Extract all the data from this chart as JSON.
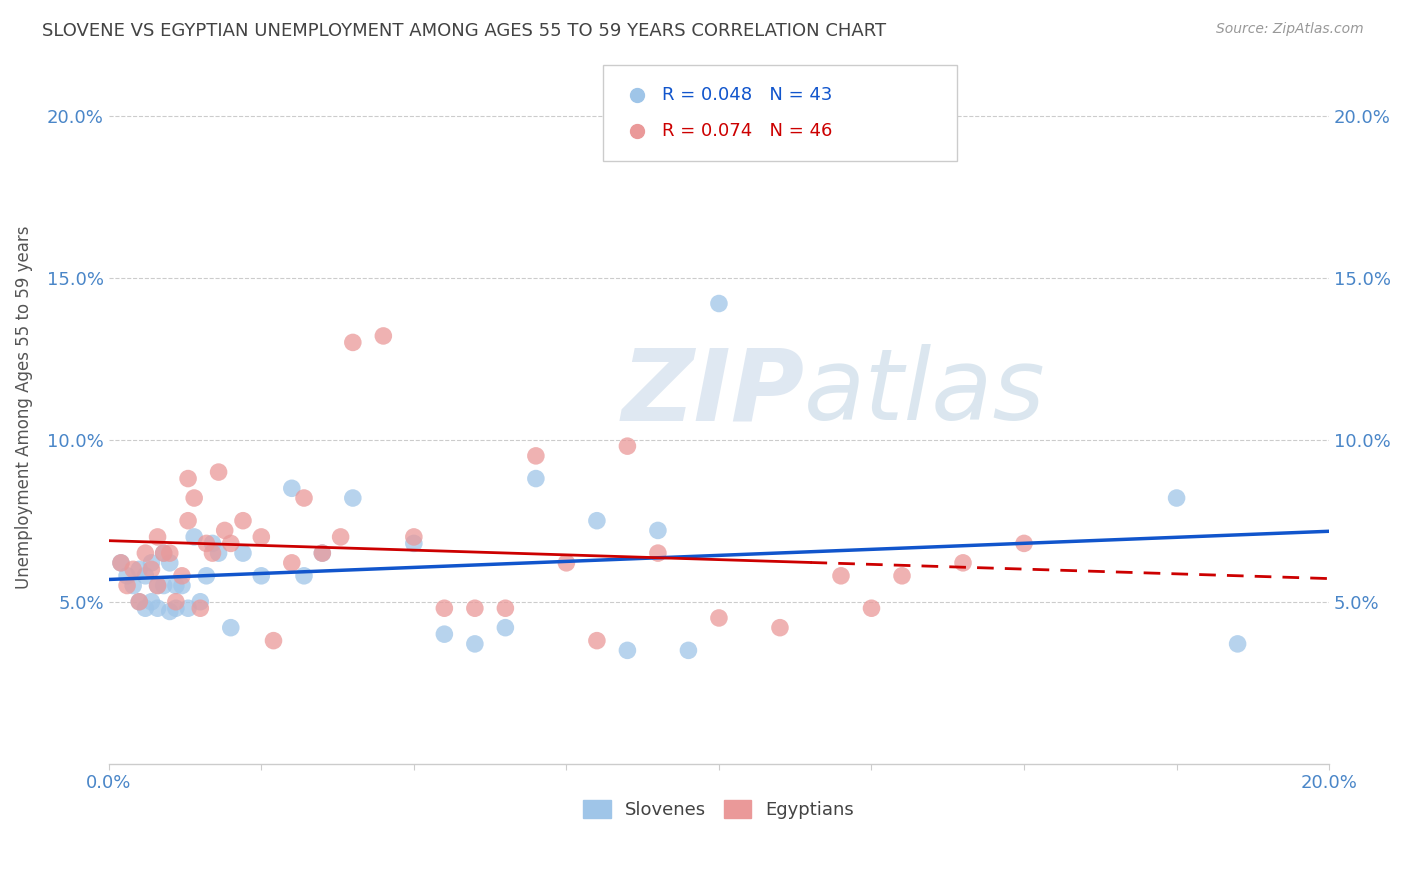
{
  "title": "SLOVENE VS EGYPTIAN UNEMPLOYMENT AMONG AGES 55 TO 59 YEARS CORRELATION CHART",
  "source": "Source: ZipAtlas.com",
  "ylabel": "Unemployment Among Ages 55 to 59 years",
  "xlim": [
    0.0,
    0.2
  ],
  "ylim": [
    0.0,
    0.22
  ],
  "xticks": [
    0.0,
    0.025,
    0.05,
    0.075,
    0.1,
    0.125,
    0.15,
    0.175,
    0.2
  ],
  "xtick_labels_show": [
    "0.0%",
    "",
    "",
    "",
    "",
    "",
    "",
    "",
    "20.0%"
  ],
  "yticks": [
    0.05,
    0.1,
    0.15,
    0.2
  ],
  "ytick_labels": [
    "5.0%",
    "10.0%",
    "15.0%",
    "20.0%"
  ],
  "slovene_color": "#9fc5e8",
  "egyptian_color": "#ea9999",
  "slovene_line_color": "#1155cc",
  "egyptian_line_color": "#cc0000",
  "slovene_R": 0.048,
  "slovene_N": 43,
  "egyptian_R": 0.074,
  "egyptian_N": 46,
  "slovene_x": [
    0.002,
    0.003,
    0.004,
    0.005,
    0.005,
    0.006,
    0.006,
    0.007,
    0.007,
    0.008,
    0.008,
    0.009,
    0.009,
    0.01,
    0.01,
    0.011,
    0.011,
    0.012,
    0.013,
    0.014,
    0.015,
    0.016,
    0.017,
    0.018,
    0.02,
    0.022,
    0.025,
    0.03,
    0.032,
    0.035,
    0.04,
    0.05,
    0.055,
    0.06,
    0.065,
    0.07,
    0.08,
    0.085,
    0.09,
    0.095,
    0.1,
    0.175,
    0.185
  ],
  "slovene_y": [
    0.062,
    0.058,
    0.055,
    0.06,
    0.05,
    0.058,
    0.048,
    0.062,
    0.05,
    0.055,
    0.048,
    0.065,
    0.055,
    0.062,
    0.047,
    0.055,
    0.048,
    0.055,
    0.048,
    0.07,
    0.05,
    0.058,
    0.068,
    0.065,
    0.042,
    0.065,
    0.058,
    0.085,
    0.058,
    0.065,
    0.082,
    0.068,
    0.04,
    0.037,
    0.042,
    0.088,
    0.075,
    0.035,
    0.072,
    0.035,
    0.142,
    0.082,
    0.037
  ],
  "egyptian_x": [
    0.002,
    0.003,
    0.004,
    0.005,
    0.006,
    0.007,
    0.008,
    0.008,
    0.009,
    0.01,
    0.011,
    0.012,
    0.013,
    0.013,
    0.014,
    0.015,
    0.016,
    0.017,
    0.018,
    0.019,
    0.02,
    0.022,
    0.025,
    0.027,
    0.03,
    0.032,
    0.035,
    0.038,
    0.04,
    0.045,
    0.05,
    0.055,
    0.06,
    0.065,
    0.07,
    0.075,
    0.08,
    0.085,
    0.09,
    0.1,
    0.11,
    0.12,
    0.125,
    0.13,
    0.14,
    0.15
  ],
  "egyptian_y": [
    0.062,
    0.055,
    0.06,
    0.05,
    0.065,
    0.06,
    0.07,
    0.055,
    0.065,
    0.065,
    0.05,
    0.058,
    0.075,
    0.088,
    0.082,
    0.048,
    0.068,
    0.065,
    0.09,
    0.072,
    0.068,
    0.075,
    0.07,
    0.038,
    0.062,
    0.082,
    0.065,
    0.07,
    0.13,
    0.132,
    0.07,
    0.048,
    0.048,
    0.048,
    0.095,
    0.062,
    0.038,
    0.098,
    0.065,
    0.045,
    0.042,
    0.058,
    0.048,
    0.058,
    0.062,
    0.068
  ],
  "watermark_zip": "ZIP",
  "watermark_atlas": "atlas",
  "background_color": "#ffffff",
  "grid_color": "#cccccc",
  "title_color": "#434343",
  "tick_color": "#4a86c8",
  "ylabel_color": "#555555"
}
